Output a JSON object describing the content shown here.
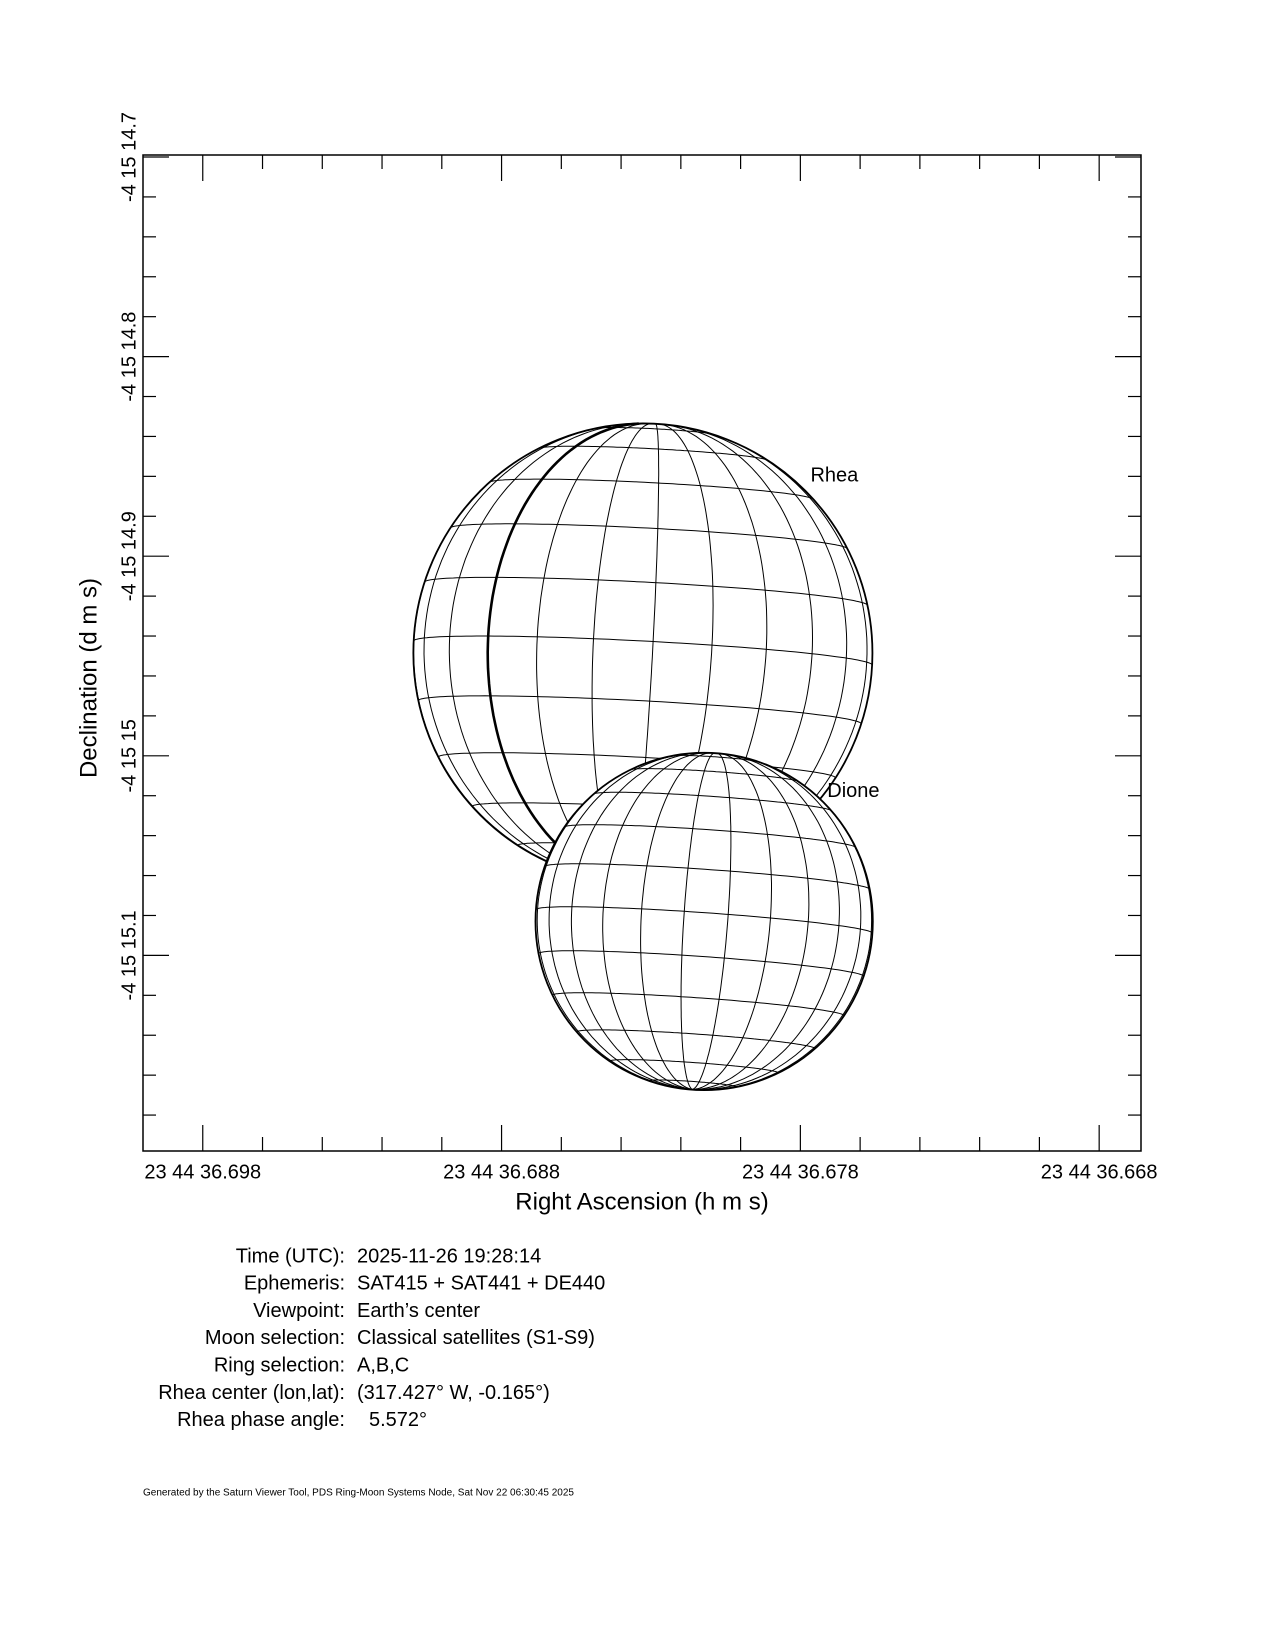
{
  "chart_data": {
    "type": "scatter",
    "x_label": "Right Ascension (h m s)",
    "y_label": "Declination (d m s)",
    "xlim": [
      36.7,
      36.6666
    ],
    "ylim": [
      14.699,
      15.198
    ],
    "xticks": [
      {
        "value": 36.698,
        "label": "23 44 36.698"
      },
      {
        "value": 36.688,
        "label": "23 44 36.688"
      },
      {
        "value": 36.678,
        "label": "23 44 36.678"
      },
      {
        "value": 36.668,
        "label": "23 44 36.668"
      }
    ],
    "xminorticks": [
      36.696,
      36.694,
      36.692,
      36.69,
      36.686,
      36.684,
      36.682,
      36.68,
      36.676,
      36.674,
      36.672,
      36.67
    ],
    "yticks": [
      {
        "value": 14.7,
        "label": "-4 15 14.7"
      },
      {
        "value": 14.8,
        "label": "-4 15 14.8"
      },
      {
        "value": 14.9,
        "label": "-4 15 14.9"
      },
      {
        "value": 15.0,
        "label": "-4 15 15"
      },
      {
        "value": 15.1,
        "label": "-4 15 15.1"
      }
    ],
    "yminorticks": [
      14.72,
      14.74,
      14.76,
      14.78,
      14.82,
      14.84,
      14.86,
      14.88,
      14.92,
      14.94,
      14.96,
      14.98,
      15.02,
      15.04,
      15.06,
      15.08,
      15.12,
      15.14,
      15.16,
      15.18
    ],
    "series": [
      {
        "name": "Rhea",
        "color": "#000000",
        "x": [
          36.68327
        ],
        "values": [
          14.9485
        ],
        "radius": [
          0.115
        ]
      },
      {
        "name": "Dione",
        "color": "#000000",
        "x": [
          36.68122
        ],
        "values": [
          15.083
        ],
        "radius": [
          0.0845
        ]
      }
    ]
  },
  "info": [
    {
      "label": "Time (UTC):",
      "value": "2025-11-26 19:28:14"
    },
    {
      "label": "Ephemeris:",
      "value": "SAT415 + SAT441 + DE440"
    },
    {
      "label": "Viewpoint:",
      "value": "Earth’s center"
    },
    {
      "label": "Moon selection:",
      "value": "Classical satellites (S1-S9)"
    },
    {
      "label": "Ring selection:",
      "value": "A,B,C"
    },
    {
      "label": "Rhea center (lon,lat):",
      "value": "(317.427° W, -0.165°)"
    },
    {
      "label": "Rhea phase angle:",
      "value": "5.572°"
    }
  ],
  "footer": "Generated by the Saturn Viewer Tool, PDS Ring-Moon Systems Node, Sat Nov 22 06:30:45 2025"
}
